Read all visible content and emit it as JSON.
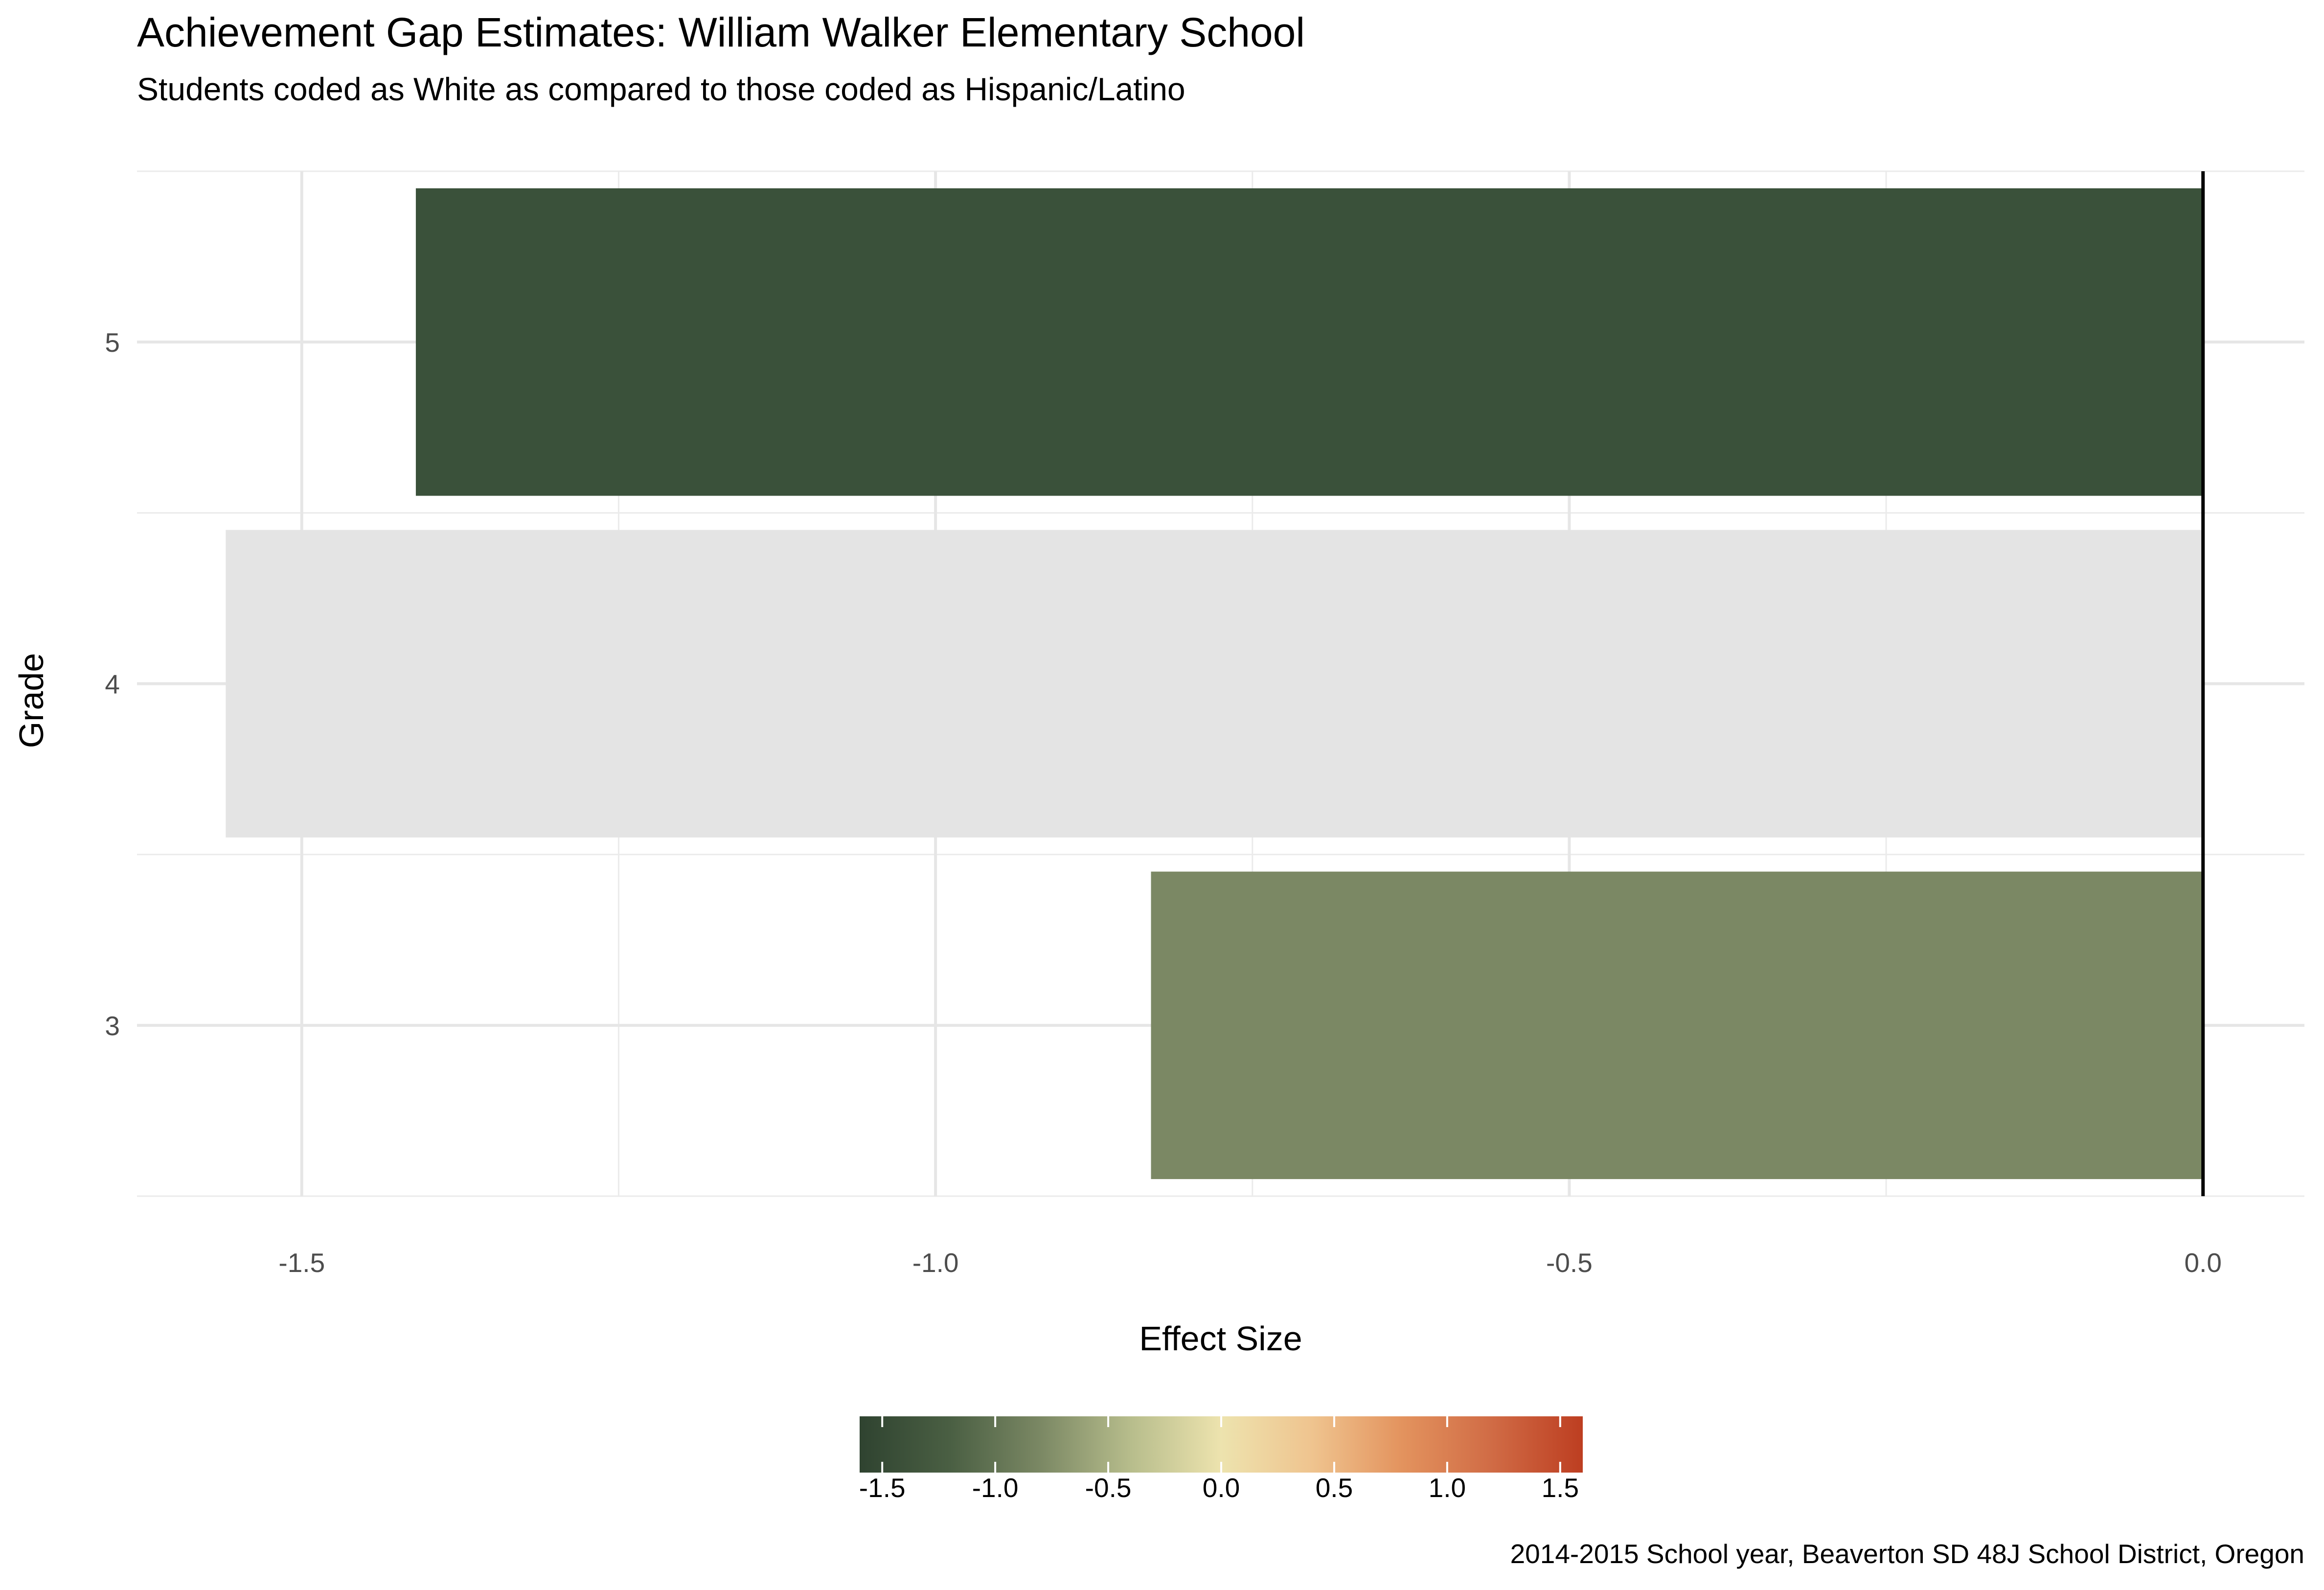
{
  "chart_data": {
    "type": "bar",
    "orientation": "horizontal",
    "title": "Achievement Gap Estimates: William Walker Elementary School",
    "subtitle": "Students coded as White as compared to those coded as Hispanic/Latino",
    "caption": "2014-2015 School year, Beaverton SD 48J School District, Oregon",
    "xlabel": "Effect Size",
    "ylabel": "Grade",
    "categories": [
      "3",
      "4",
      "5"
    ],
    "values": [
      -0.83,
      -1.56,
      -1.41
    ],
    "bar_colors": [
      "#7b8864",
      "#e4e4e4",
      "#3a513a"
    ],
    "xlim": [
      -1.63,
      0.08
    ],
    "xticks": [
      -1.5,
      -1.0,
      -0.5,
      0.0
    ],
    "xtick_labels": [
      "-1.5",
      "-1.0",
      "-0.5",
      "0.0"
    ],
    "xminor": [
      -1.25,
      -0.75,
      -0.25
    ],
    "grid": true,
    "reference_line": 0,
    "legend": {
      "position": "bottom",
      "type": "colorbar",
      "range": [
        -1.6,
        1.6
      ],
      "ticks": [
        -1.5,
        -1.0,
        -0.5,
        0.0,
        0.5,
        1.0,
        1.5
      ],
      "tick_labels": [
        "-1.5",
        "-1.0",
        "-0.5",
        "0.0",
        "0.5",
        "1.0",
        "1.5"
      ],
      "colors": [
        "#2f4330",
        "#4a5f43",
        "#7b8864",
        "#b7bd8c",
        "#ede3ae",
        "#efc48f",
        "#e3935e",
        "#d06b45",
        "#bd3e21"
      ]
    }
  }
}
